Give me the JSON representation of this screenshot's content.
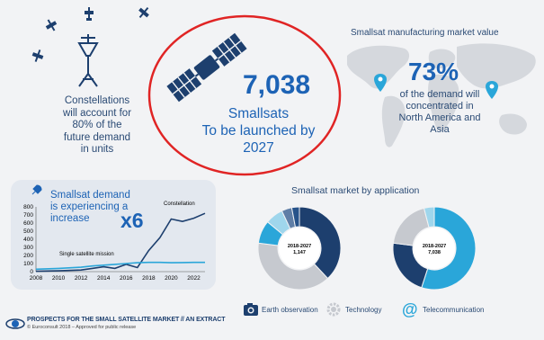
{
  "constellations": {
    "text_lines": [
      "Constellations",
      "will account for",
      "80% of the",
      "future demand",
      "in units"
    ]
  },
  "headline": {
    "number": "7,038",
    "lines": [
      "Smallsats",
      "To be launched by",
      "2027"
    ]
  },
  "map_section": {
    "title": "Smallsat manufacturing market value",
    "percent": "73%",
    "text_lines": [
      "of the demand will",
      "concentrated in",
      "North America and",
      "Asia"
    ]
  },
  "demand_section": {
    "title_lines": [
      "Smallsat demand",
      "is experiencing a",
      "increase"
    ],
    "multiplier": "x6",
    "series": [
      {
        "name": "Constellation",
        "color": "#1d3f6e"
      },
      {
        "name": "Single satellite mission",
        "color": "#2aa6d9"
      }
    ]
  },
  "chart_data": {
    "type": "line",
    "x": [
      2008,
      2010,
      2012,
      2014,
      2016,
      2018,
      2020,
      2022
    ],
    "xticks": [
      "2008",
      "2010",
      "2012",
      "2014",
      "2016",
      "2018",
      "2020",
      "2022"
    ],
    "yticks": [
      "0",
      "100",
      "200",
      "300",
      "400",
      "500",
      "600",
      "700",
      "800"
    ],
    "ylim": [
      0,
      800
    ],
    "series": [
      {
        "name": "Constellation",
        "x": [
          2008,
          2010,
          2012,
          2013,
          2014,
          2015,
          2016,
          2017,
          2018,
          2019,
          2020,
          2021,
          2022,
          2023
        ],
        "values": [
          5,
          10,
          20,
          40,
          60,
          40,
          90,
          50,
          260,
          420,
          650,
          620,
          660,
          720
        ]
      },
      {
        "name": "Single satellite mission",
        "x": [
          2008,
          2010,
          2012,
          2013,
          2014,
          2015,
          2016,
          2017,
          2018,
          2019,
          2020,
          2021,
          2022,
          2023
        ],
        "values": [
          30,
          40,
          55,
          70,
          80,
          90,
          100,
          110,
          115,
          115,
          110,
          112,
          115,
          115
        ]
      }
    ]
  },
  "application_section": {
    "title": "Smallsat market by application",
    "donuts": [
      {
        "center_lines": [
          "2018-2027",
          "1,147"
        ],
        "segments": [
          {
            "label": "Earth observation",
            "value": 38,
            "color": "#1d3f6e"
          },
          {
            "label": "Technology",
            "value": 39,
            "color": "#c6c9cf"
          },
          {
            "label": "Science & Exploration",
            "value": 9,
            "color": "#2aa6d9"
          },
          {
            "label": "Telecom",
            "value": 7,
            "color": "#9fd6ec"
          },
          {
            "label": "Information",
            "value": 4,
            "color": "#5f7ea6"
          },
          {
            "label": "Security",
            "value": 3,
            "color": "#27538a"
          }
        ],
        "small_labels": [
          "Information",
          "Security",
          "Telecom",
          "Science & Explor.",
          "Technology",
          "EO"
        ]
      },
      {
        "center_lines": [
          "2018-2027",
          "7,038"
        ],
        "segments": [
          {
            "label": "Telecom",
            "value": 55,
            "color": "#2aa6d9"
          },
          {
            "label": "Earth observation",
            "value": 22,
            "color": "#1d3f6e"
          },
          {
            "label": "Technology",
            "value": 19,
            "color": "#c6c9cf"
          },
          {
            "label": "Other",
            "value": 4,
            "color": "#9fd6ec"
          }
        ],
        "small_labels": [
          "Technology",
          "Telecom",
          "EO"
        ]
      }
    ],
    "legend": [
      {
        "label": "Earth observation",
        "icon": "camera-icon"
      },
      {
        "label": "Technology",
        "icon": "gear-icon"
      },
      {
        "label": "Telecommunication",
        "icon": "at-sign-icon"
      }
    ]
  },
  "footer": {
    "title": "PROSPECTS FOR THE SMALL SATELLITE MARKET // AN EXTRACT",
    "subtitle": "© Euroconsult 2018 – Approved for public release"
  },
  "colors": {
    "navy": "#1d3f6e",
    "blue": "#1d63b5",
    "cyan": "#2aa6d9",
    "highlight_circle": "#e02424"
  }
}
